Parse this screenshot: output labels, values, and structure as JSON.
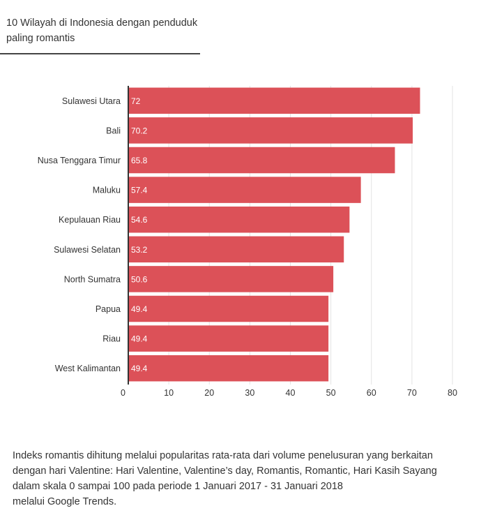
{
  "header": {
    "title_line1": "10 Wilayah di Indonesia dengan penduduk",
    "title_line2": "paling romantis"
  },
  "chart_data": {
    "type": "bar",
    "orientation": "horizontal",
    "categories": [
      "Sulawesi Utara",
      "Bali",
      "Nusa Tenggara Timur",
      "Maluku",
      "Kepulauan Riau",
      "Sulawesi Selatan",
      "North Sumatra",
      "Papua",
      "Riau",
      "West Kalimantan"
    ],
    "values": [
      72,
      70.2,
      65.8,
      57.4,
      54.6,
      53.2,
      50.6,
      49.4,
      49.4,
      49.4
    ],
    "value_labels": [
      "72",
      "70.2",
      "65.8",
      "57.4",
      "54.6",
      "53.2",
      "50.6",
      "49.4",
      "49.4",
      "49.4"
    ],
    "xlim": [
      0,
      80
    ],
    "xticks": [
      0,
      10,
      20,
      30,
      40,
      50,
      60,
      70,
      80
    ],
    "grid": "vertical",
    "bar_color": "#dc5158",
    "label_color": "#ffffff"
  },
  "footnote": {
    "lines": [
      "Indeks romantis dihitung melalui popularitas rata-rata dari volume penelusuran yang berkaitan",
      "dengan hari Valentine: Hari Valentine, Valentine’s day, Romantis, Romantic, Hari Kasih Sayang",
      "dalam skala 0 sampai 100 pada periode 1 Januari 2017 - 31 Januari 2018",
      "melalui Google Trends."
    ]
  }
}
